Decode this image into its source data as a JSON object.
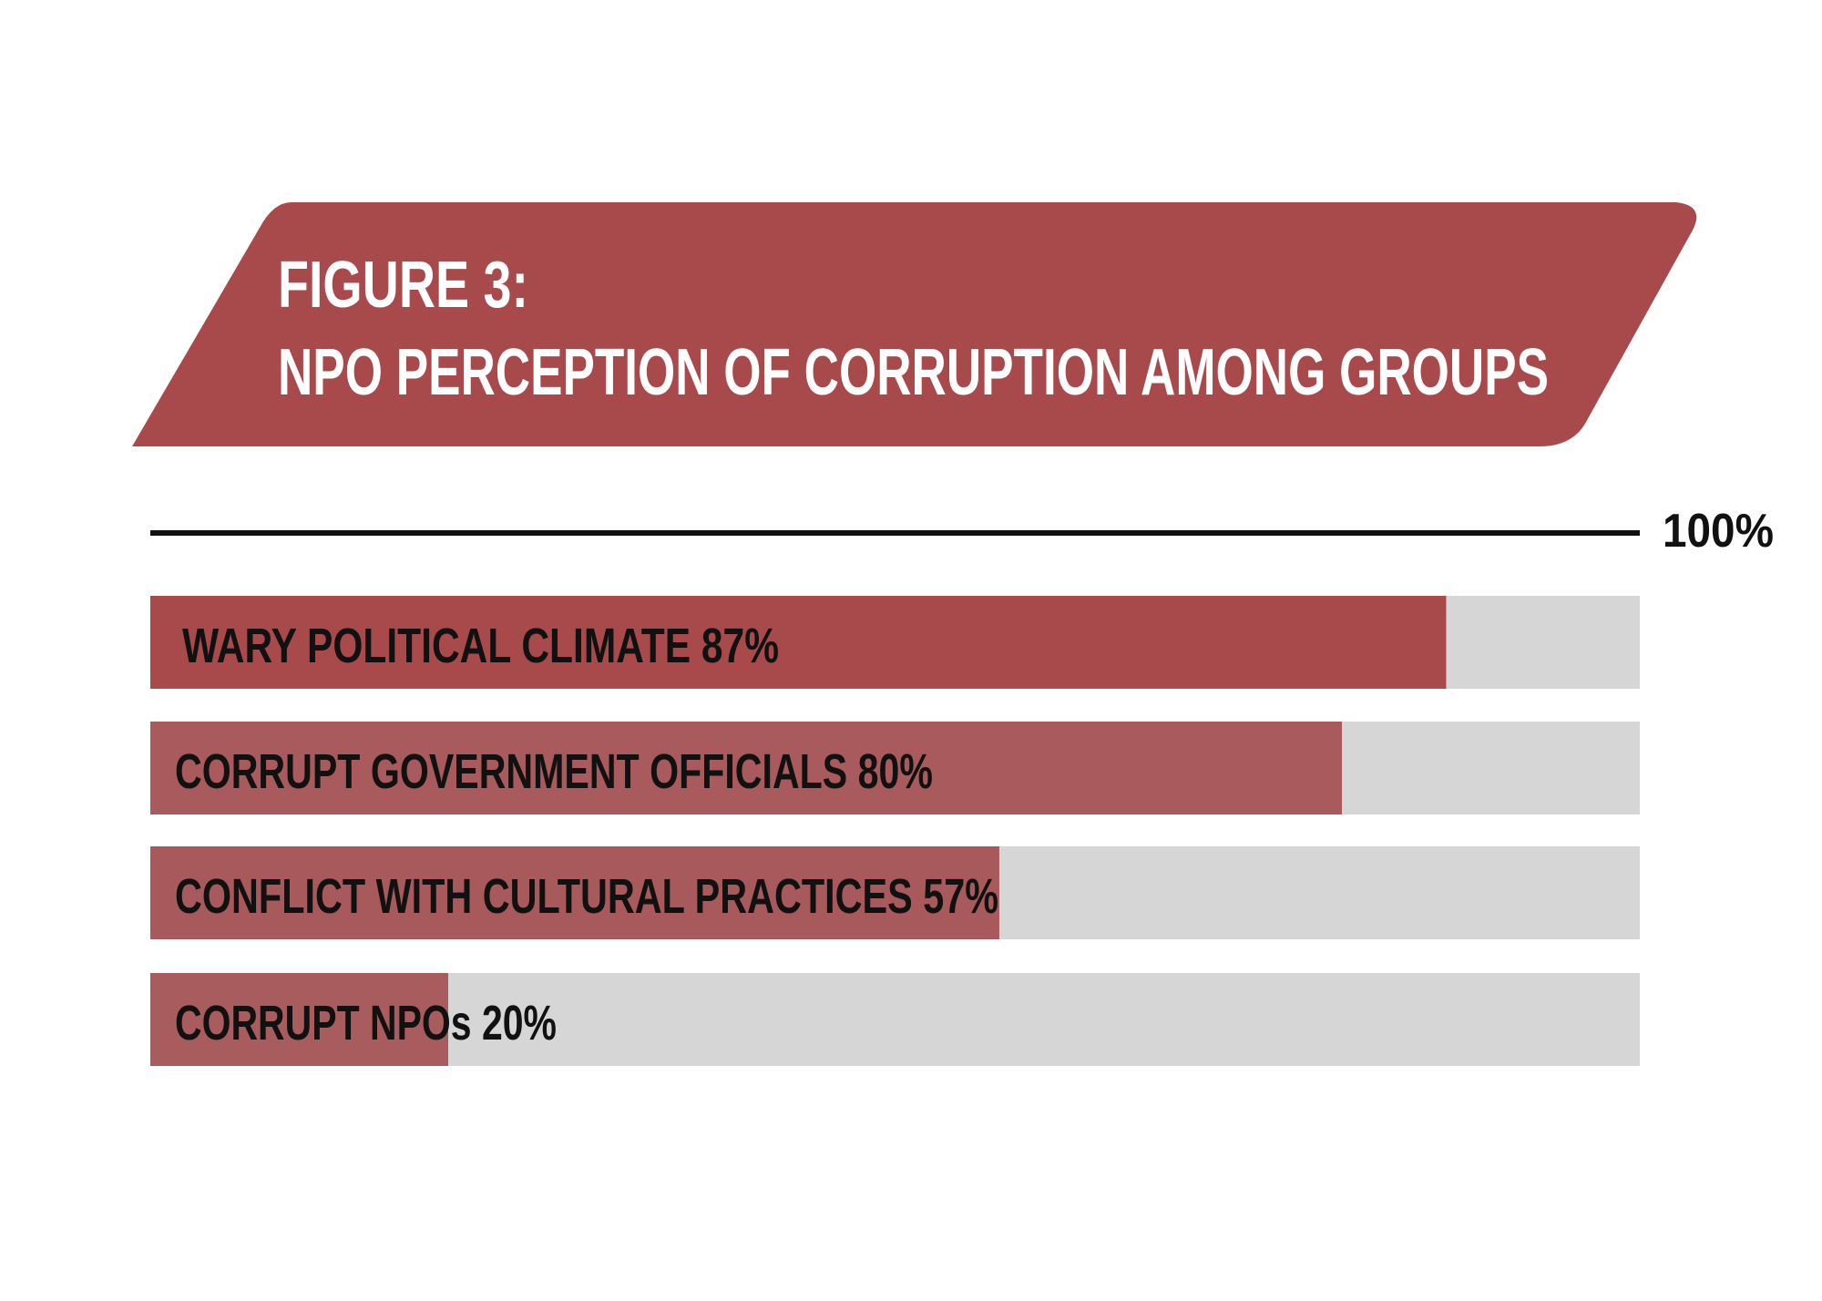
{
  "chart_data": {
    "type": "bar",
    "orientation": "horizontal",
    "title_line1": "FIGURE 3:",
    "title_line2": "NPO PERCEPTION OF CORRUPTION AMONG GROUPS",
    "max_label": "100%",
    "xlim": [
      0,
      100
    ],
    "categories": [
      "WARY POLITICAL CLIMATE 87%",
      "CORRUPT GOVERNMENT OFFICIALS 80%",
      "CONFLICT WITH CULTURAL PRACTICES 57%",
      "CORRUPT NPOs 20%"
    ],
    "values": [
      87,
      80,
      57,
      20
    ],
    "colors": {
      "banner": "#a84a4c",
      "bars": [
        "#a84a4c",
        "#a85a5c",
        "#a8595b",
        "#a85c5e"
      ],
      "track": "#d6d6d6",
      "line": "#111111"
    }
  }
}
